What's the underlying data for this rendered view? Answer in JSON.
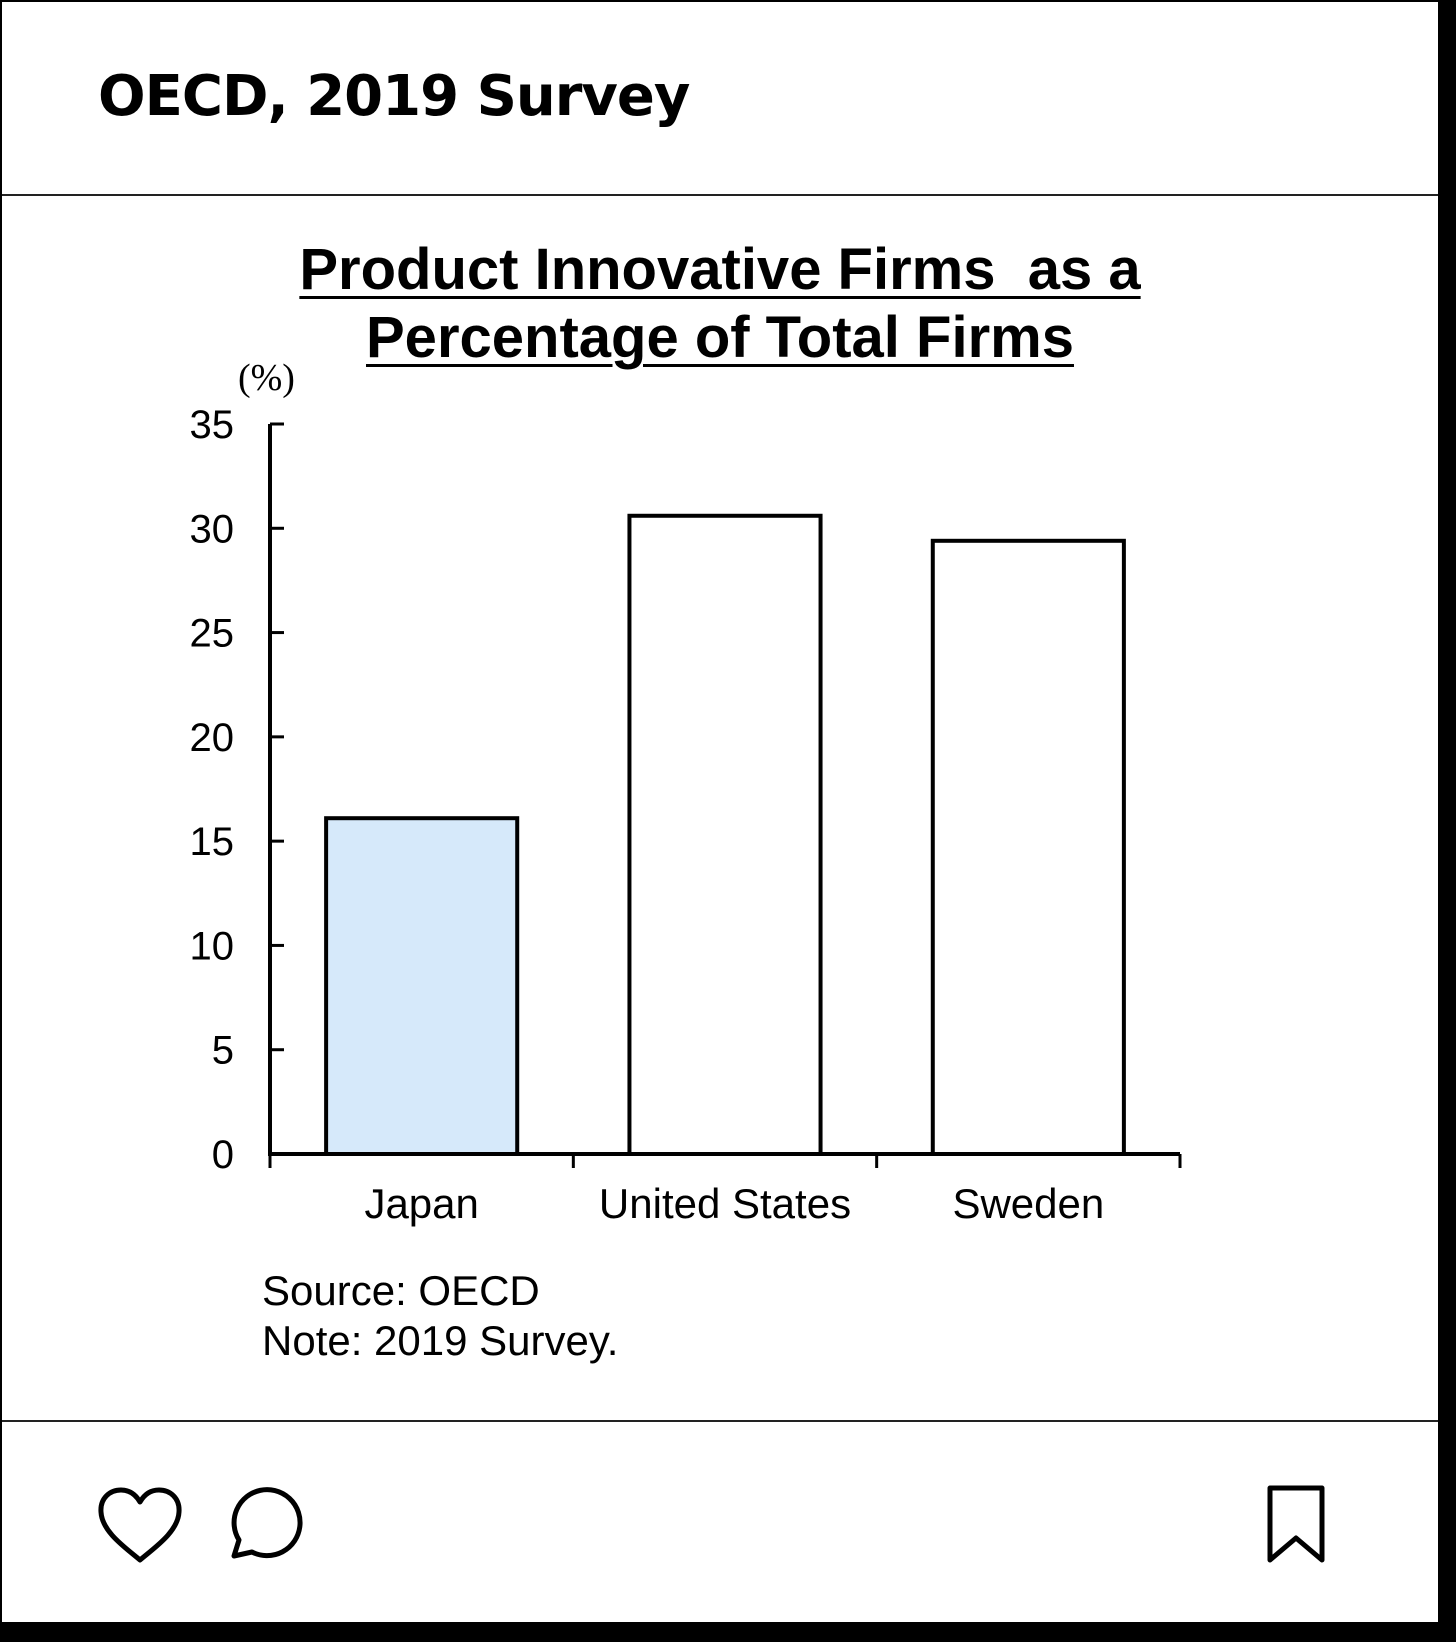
{
  "post": {
    "title": "OECD, 2019 Survey"
  },
  "chart_data": {
    "type": "bar",
    "title_line1": "Product Innovative Firms  as a",
    "title_line2": "Percentage of Total Firms",
    "ylabel": "(%)",
    "xlabel": "",
    "categories": [
      "Japan",
      "United States",
      "Sweden"
    ],
    "values": [
      16.1,
      30.6,
      29.4
    ],
    "ylim": [
      0,
      35
    ],
    "yticks": [
      0,
      5,
      10,
      15,
      20,
      25,
      30,
      35
    ],
    "grid": false,
    "legend": "none",
    "bar_colors": [
      "#d6e9fa",
      "#ffffff",
      "#ffffff"
    ],
    "source": "Source: OECD",
    "note": "Note: 2019 Survey."
  },
  "actions": {
    "like_icon": "heart-icon",
    "comment_icon": "comment-icon",
    "save_icon": "bookmark-icon"
  }
}
